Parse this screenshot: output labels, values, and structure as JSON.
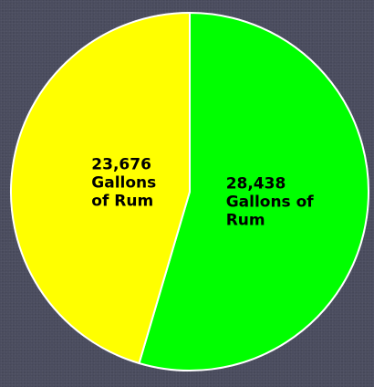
{
  "chart_data": {
    "type": "pie",
    "start_angle_deg": 0,
    "direction": "clockwise",
    "slices": [
      {
        "label_lines": [
          "28,438",
          "Gallons of",
          "Rum"
        ],
        "value": 28438,
        "color": "#00ff00"
      },
      {
        "label_lines": [
          "23,676",
          "Gallons",
          "of Rum"
        ],
        "value": 23676,
        "color": "#ffff00"
      }
    ],
    "border_color": "#ffffff"
  }
}
